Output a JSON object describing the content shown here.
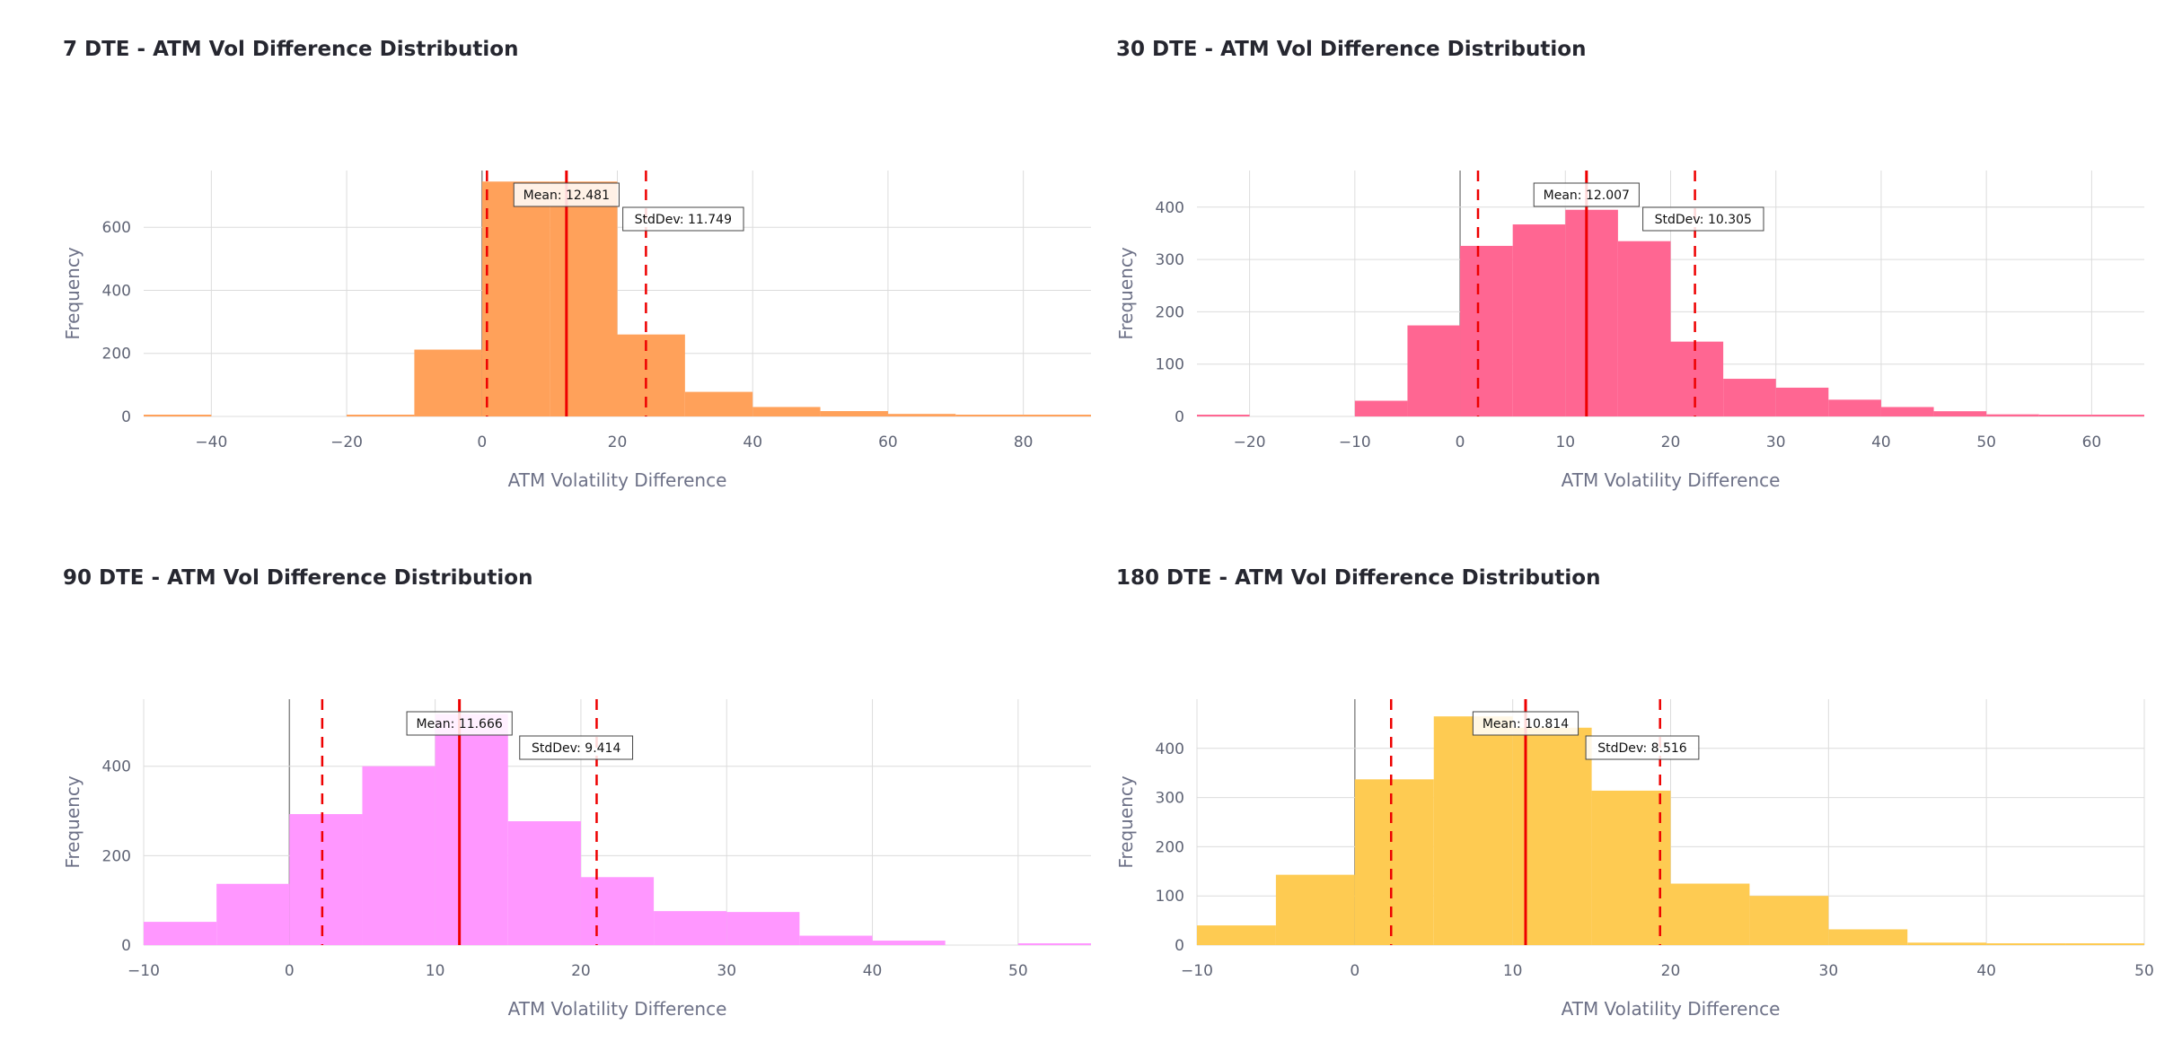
{
  "chart_data": [
    {
      "type": "bar",
      "title": "7 DTE - ATM Vol Difference Distribution",
      "xlabel": "ATM Volatility Difference",
      "ylabel": "Frequency",
      "color": "#FFA15A",
      "xlim": [
        -50,
        90
      ],
      "ylim": [
        0,
        780
      ],
      "xticks": [
        -40,
        -20,
        0,
        20,
        40,
        60,
        80
      ],
      "yticks": [
        0,
        200,
        400,
        600
      ],
      "bins": [
        {
          "x0": -50,
          "x1": -40,
          "count": 3
        },
        {
          "x0": -40,
          "x1": -30,
          "count": 0
        },
        {
          "x0": -30,
          "x1": -20,
          "count": 0
        },
        {
          "x0": -20,
          "x1": -10,
          "count": 2
        },
        {
          "x0": -10,
          "x1": 0,
          "count": 212
        },
        {
          "x0": 0,
          "x1": 10,
          "count": 745
        },
        {
          "x0": 10,
          "x1": 20,
          "count": 745
        },
        {
          "x0": 20,
          "x1": 30,
          "count": 260
        },
        {
          "x0": 30,
          "x1": 40,
          "count": 78
        },
        {
          "x0": 40,
          "x1": 50,
          "count": 30
        },
        {
          "x0": 50,
          "x1": 60,
          "count": 17
        },
        {
          "x0": 60,
          "x1": 70,
          "count": 8
        },
        {
          "x0": 70,
          "x1": 80,
          "count": 4
        },
        {
          "x0": 80,
          "x1": 90,
          "count": 2
        }
      ],
      "mean": 12.481,
      "stddev": 11.749,
      "mean_label": "Mean: 12.481",
      "std_label": "StdDev: 11.749"
    },
    {
      "type": "bar",
      "title": "30 DTE - ATM Vol Difference Distribution",
      "xlabel": "ATM Volatility Difference",
      "ylabel": "Frequency",
      "color": "#FF6692",
      "xlim": [
        -25,
        65
      ],
      "ylim": [
        0,
        470
      ],
      "xticks": [
        -20,
        -10,
        0,
        10,
        20,
        30,
        40,
        50,
        60
      ],
      "yticks": [
        0,
        100,
        200,
        300,
        400
      ],
      "bins": [
        {
          "x0": -25,
          "x1": -20,
          "count": 2
        },
        {
          "x0": -20,
          "x1": -15,
          "count": 0
        },
        {
          "x0": -15,
          "x1": -10,
          "count": 0
        },
        {
          "x0": -10,
          "x1": -5,
          "count": 30
        },
        {
          "x0": -5,
          "x1": 0,
          "count": 174
        },
        {
          "x0": 0,
          "x1": 5,
          "count": 326
        },
        {
          "x0": 5,
          "x1": 10,
          "count": 367
        },
        {
          "x0": 10,
          "x1": 15,
          "count": 395
        },
        {
          "x0": 15,
          "x1": 20,
          "count": 335
        },
        {
          "x0": 20,
          "x1": 25,
          "count": 143
        },
        {
          "x0": 25,
          "x1": 30,
          "count": 72
        },
        {
          "x0": 30,
          "x1": 35,
          "count": 55
        },
        {
          "x0": 35,
          "x1": 40,
          "count": 32
        },
        {
          "x0": 40,
          "x1": 45,
          "count": 18
        },
        {
          "x0": 45,
          "x1": 50,
          "count": 10
        },
        {
          "x0": 50,
          "x1": 55,
          "count": 4
        },
        {
          "x0": 55,
          "x1": 60,
          "count": 2
        },
        {
          "x0": 60,
          "x1": 65,
          "count": 1
        }
      ],
      "mean": 12.007,
      "stddev": 10.305,
      "mean_label": "Mean: 12.007",
      "std_label": "StdDev: 10.305"
    },
    {
      "type": "bar",
      "title": "90 DTE - ATM Vol Difference Distribution",
      "xlabel": "ATM Volatility Difference",
      "ylabel": "Frequency",
      "color": "#FF97FF",
      "xlim": [
        -10,
        55
      ],
      "ylim": [
        0,
        550
      ],
      "xticks": [
        -10,
        0,
        10,
        20,
        30,
        40,
        50
      ],
      "yticks": [
        0,
        200,
        400
      ],
      "bins": [
        {
          "x0": -10,
          "x1": -5,
          "count": 52
        },
        {
          "x0": -5,
          "x1": 0,
          "count": 137
        },
        {
          "x0": 0,
          "x1": 5,
          "count": 293
        },
        {
          "x0": 5,
          "x1": 10,
          "count": 400
        },
        {
          "x0": 10,
          "x1": 15,
          "count": 517
        },
        {
          "x0": 15,
          "x1": 20,
          "count": 277
        },
        {
          "x0": 20,
          "x1": 25,
          "count": 152
        },
        {
          "x0": 25,
          "x1": 30,
          "count": 76
        },
        {
          "x0": 30,
          "x1": 35,
          "count": 74
        },
        {
          "x0": 35,
          "x1": 40,
          "count": 21
        },
        {
          "x0": 40,
          "x1": 45,
          "count": 10
        },
        {
          "x0": 45,
          "x1": 50,
          "count": 0
        },
        {
          "x0": 50,
          "x1": 55,
          "count": 4
        }
      ],
      "mean": 11.666,
      "stddev": 9.414,
      "mean_label": "Mean: 11.666",
      "std_label": "StdDev: 9.414"
    },
    {
      "type": "bar",
      "title": "180 DTE - ATM Vol Difference Distribution",
      "xlabel": "ATM Volatility Difference",
      "ylabel": "Frequency",
      "color": "#FECB52",
      "xlim": [
        -10,
        50
      ],
      "ylim": [
        0,
        500
      ],
      "xticks": [
        -10,
        0,
        10,
        20,
        30,
        40,
        50
      ],
      "yticks": [
        0,
        100,
        200,
        300,
        400
      ],
      "bins": [
        {
          "x0": -10,
          "x1": -5,
          "count": 40
        },
        {
          "x0": -5,
          "x1": 0,
          "count": 143
        },
        {
          "x0": 0,
          "x1": 5,
          "count": 337
        },
        {
          "x0": 5,
          "x1": 10,
          "count": 465
        },
        {
          "x0": 10,
          "x1": 15,
          "count": 442
        },
        {
          "x0": 15,
          "x1": 20,
          "count": 314
        },
        {
          "x0": 20,
          "x1": 25,
          "count": 125
        },
        {
          "x0": 25,
          "x1": 30,
          "count": 100
        },
        {
          "x0": 30,
          "x1": 35,
          "count": 32
        },
        {
          "x0": 35,
          "x1": 40,
          "count": 5
        },
        {
          "x0": 40,
          "x1": 45,
          "count": 2
        },
        {
          "x0": 45,
          "x1": 50,
          "count": 1
        }
      ],
      "mean": 10.814,
      "stddev": 8.516,
      "mean_label": "Mean: 10.814",
      "std_label": "StdDev: 8.516"
    }
  ]
}
